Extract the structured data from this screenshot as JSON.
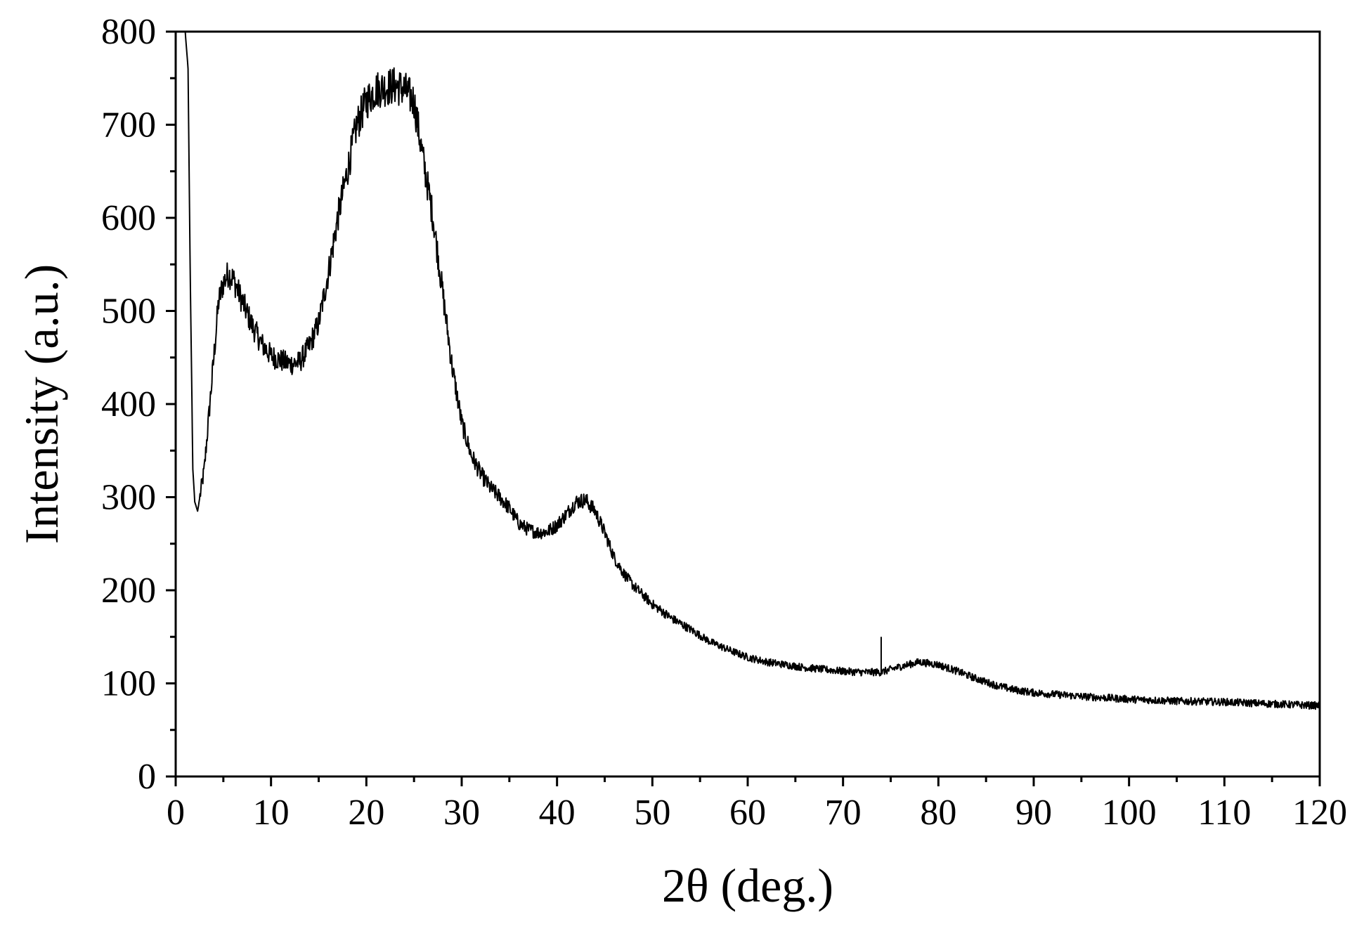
{
  "chart_data": {
    "type": "line",
    "title": "",
    "xlabel": "2θ (deg.)",
    "ylabel": "Intensity (a.u.)",
    "xlim": [
      0,
      120
    ],
    "ylim": [
      0,
      800
    ],
    "xticks": [
      0,
      10,
      20,
      30,
      40,
      50,
      60,
      70,
      80,
      90,
      100,
      110,
      120
    ],
    "yticks": [
      0,
      100,
      200,
      300,
      400,
      500,
      600,
      700,
      800
    ],
    "grid": false,
    "legend": "none",
    "series": [
      {
        "color": "#000000",
        "noisy": true,
        "points": [
          [
            1.0,
            800
          ],
          [
            1.3,
            760
          ],
          [
            1.5,
            560
          ],
          [
            1.8,
            330
          ],
          [
            2.0,
            295
          ],
          [
            2.3,
            285
          ],
          [
            3.0,
            330
          ],
          [
            4.0,
            450
          ],
          [
            4.5,
            510
          ],
          [
            5.0,
            530
          ],
          [
            5.5,
            540
          ],
          [
            6.0,
            535
          ],
          [
            7.0,
            510
          ],
          [
            8.0,
            485
          ],
          [
            9.0,
            465
          ],
          [
            10.0,
            452
          ],
          [
            11.0,
            447
          ],
          [
            12.0,
            443
          ],
          [
            13.0,
            445
          ],
          [
            14.0,
            462
          ],
          [
            15.0,
            487
          ],
          [
            16.0,
            540
          ],
          [
            17.0,
            600
          ],
          [
            18.0,
            650
          ],
          [
            19.0,
            700
          ],
          [
            20.0,
            725
          ],
          [
            21.0,
            738
          ],
          [
            22.0,
            740
          ],
          [
            23.0,
            742
          ],
          [
            24.0,
            738
          ],
          [
            25.0,
            725
          ],
          [
            26.0,
            660
          ],
          [
            27.0,
            600
          ],
          [
            28.0,
            520
          ],
          [
            29.0,
            440
          ],
          [
            30.0,
            380
          ],
          [
            31.0,
            345
          ],
          [
            32.0,
            325
          ],
          [
            33.0,
            310
          ],
          [
            34.0,
            300
          ],
          [
            35.0,
            288
          ],
          [
            36.0,
            272
          ],
          [
            37.0,
            265
          ],
          [
            38.0,
            262
          ],
          [
            39.0,
            263
          ],
          [
            40.0,
            270
          ],
          [
            41.0,
            282
          ],
          [
            42.0,
            295
          ],
          [
            43.0,
            297
          ],
          [
            44.0,
            285
          ],
          [
            45.0,
            262
          ],
          [
            46.0,
            235
          ],
          [
            47.0,
            218
          ],
          [
            48.0,
            205
          ],
          [
            50.0,
            185
          ],
          [
            52.0,
            170
          ],
          [
            54.0,
            158
          ],
          [
            56.0,
            145
          ],
          [
            58.0,
            136
          ],
          [
            60.0,
            128
          ],
          [
            62.0,
            123
          ],
          [
            64.0,
            120
          ],
          [
            66.0,
            117
          ],
          [
            68.0,
            115
          ],
          [
            70.0,
            113
          ],
          [
            72.0,
            112
          ],
          [
            74.0,
            112
          ],
          [
            76.0,
            118
          ],
          [
            78.0,
            123
          ],
          [
            80.0,
            120
          ],
          [
            82.0,
            113
          ],
          [
            84.0,
            105
          ],
          [
            86.0,
            98
          ],
          [
            88.0,
            93
          ],
          [
            90.0,
            90
          ],
          [
            95.0,
            86
          ],
          [
            100.0,
            83
          ],
          [
            105.0,
            81
          ],
          [
            110.0,
            80
          ],
          [
            115.0,
            78
          ],
          [
            120.0,
            76
          ]
        ],
        "spikes": [
          [
            74.0,
            150
          ]
        ]
      }
    ]
  }
}
